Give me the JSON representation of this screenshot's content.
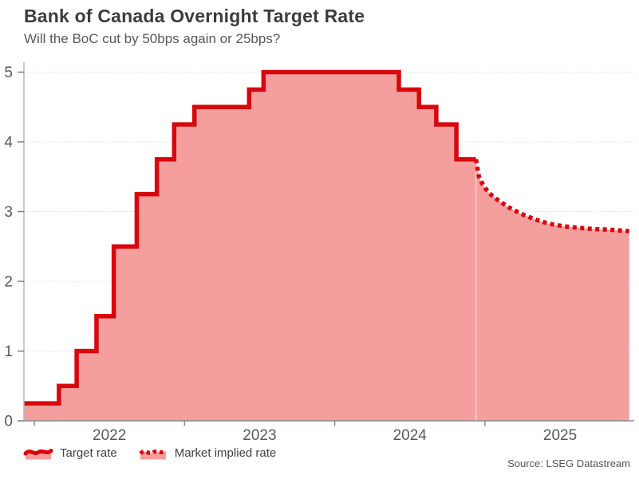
{
  "header": {
    "title": "Bank of Canada Overnight Target Rate",
    "subtitle": "Will the BoC cut by 50bps again or 25bps?"
  },
  "chart_data": {
    "type": "area",
    "description": "Step line of the BoC overnight target rate (solid) with market-implied forecast (dotted), pink area fill beneath both",
    "title": "Bank of Canada Overnight Target Rate",
    "xlabel": "",
    "ylabel": "",
    "x_domain_decimal_years": [
      2021.93,
      2025.96
    ],
    "ylim": [
      0,
      5
    ],
    "x_ticks": [
      2022,
      2023,
      2024,
      2025
    ],
    "y_ticks": [
      0,
      1,
      2,
      3,
      4,
      5
    ],
    "grid": "horizontal-dotted",
    "legend_position": "bottom-left",
    "series": [
      {
        "name": "Target rate",
        "style": "solid-step",
        "points": [
          [
            2021.93,
            0.25
          ],
          [
            2022.164,
            0.5
          ],
          [
            2022.282,
            1.0
          ],
          [
            2022.414,
            1.5
          ],
          [
            2022.529,
            2.5
          ],
          [
            2022.682,
            3.25
          ],
          [
            2022.816,
            3.75
          ],
          [
            2022.931,
            4.25
          ],
          [
            2023.066,
            4.5
          ],
          [
            2023.43,
            4.75
          ],
          [
            2023.526,
            5.0
          ],
          [
            2024.427,
            4.75
          ],
          [
            2024.561,
            4.5
          ],
          [
            2024.676,
            4.25
          ],
          [
            2024.81,
            3.75
          ],
          [
            2024.94,
            3.75
          ]
        ]
      },
      {
        "name": "Market implied rate",
        "style": "dotted-line",
        "points": [
          [
            2024.94,
            3.75
          ],
          [
            2024.96,
            3.5
          ],
          [
            2024.99,
            3.37
          ],
          [
            2025.03,
            3.26
          ],
          [
            2025.09,
            3.16
          ],
          [
            2025.16,
            3.06
          ],
          [
            2025.24,
            2.97
          ],
          [
            2025.33,
            2.89
          ],
          [
            2025.42,
            2.83
          ],
          [
            2025.52,
            2.79
          ],
          [
            2025.62,
            2.77
          ],
          [
            2025.72,
            2.75
          ],
          [
            2025.83,
            2.74
          ],
          [
            2025.96,
            2.72
          ]
        ]
      }
    ]
  },
  "legend": {
    "items": [
      {
        "label": "Target rate",
        "style": "solid"
      },
      {
        "label": "Market implied rate",
        "style": "dotted"
      }
    ]
  },
  "source": {
    "text": "Source: LSEG Datastream"
  },
  "colors": {
    "line": "#d8070c",
    "fill": "#f49e9e",
    "grid": "#dcdcdc",
    "axis_x": "#8a8a8a",
    "axis_y": "#b8b8b8",
    "tick_label": "#595959",
    "seam": "rgba(255,255,255,0.5)"
  }
}
